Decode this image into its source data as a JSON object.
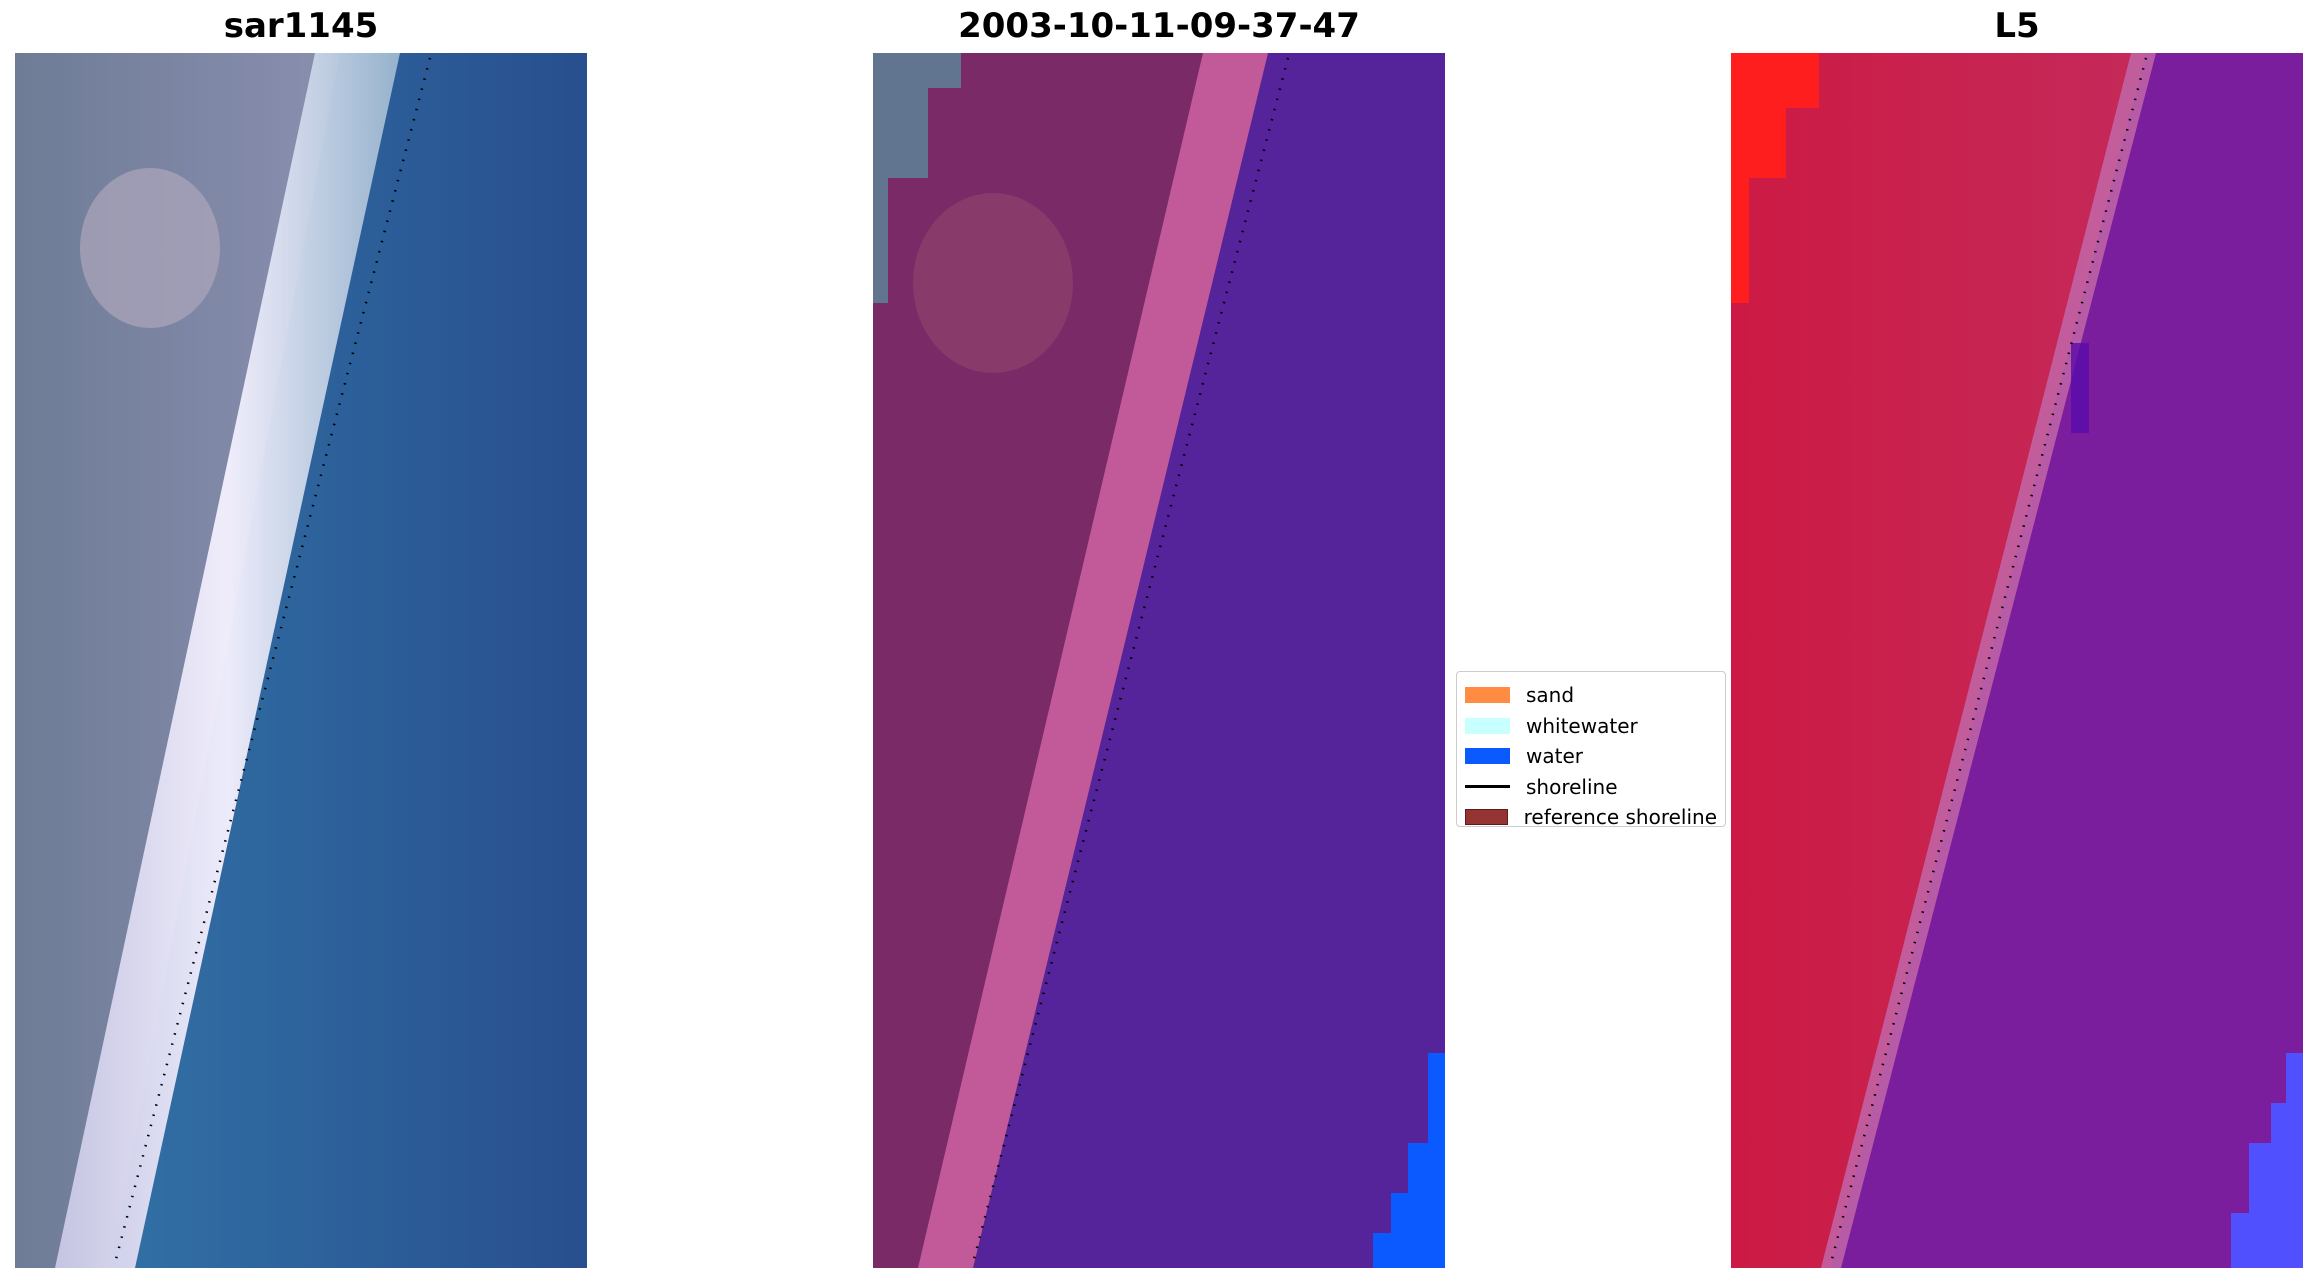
{
  "panels": [
    {
      "title": "sar1145"
    },
    {
      "title": "2003-10-11-09-37-47"
    },
    {
      "title": "L5"
    }
  ],
  "legend": {
    "items": [
      {
        "label": "sand",
        "color": "#ff8c42",
        "kind": "patch"
      },
      {
        "label": "whitewater",
        "color": "#c8ffff",
        "kind": "patch"
      },
      {
        "label": "water",
        "color": "#0a5aff",
        "kind": "patch"
      },
      {
        "label": "shoreline",
        "color": "#000000",
        "kind": "line"
      },
      {
        "label": "reference shoreline",
        "color": "#963333",
        "kind": "patch"
      }
    ]
  },
  "colors": {
    "sar_land": "#78809c",
    "sar_water": "#2d70a6",
    "class_land": "#7a2a66",
    "class_beach": "#c25a9a",
    "class_water": "#55239a",
    "class_water_edge": "#0a5aff",
    "index_land": "#c8143c",
    "index_water": "#7a1e9e",
    "index_corner": "#ff1e1e",
    "index_water_edge": "#5050ff"
  }
}
